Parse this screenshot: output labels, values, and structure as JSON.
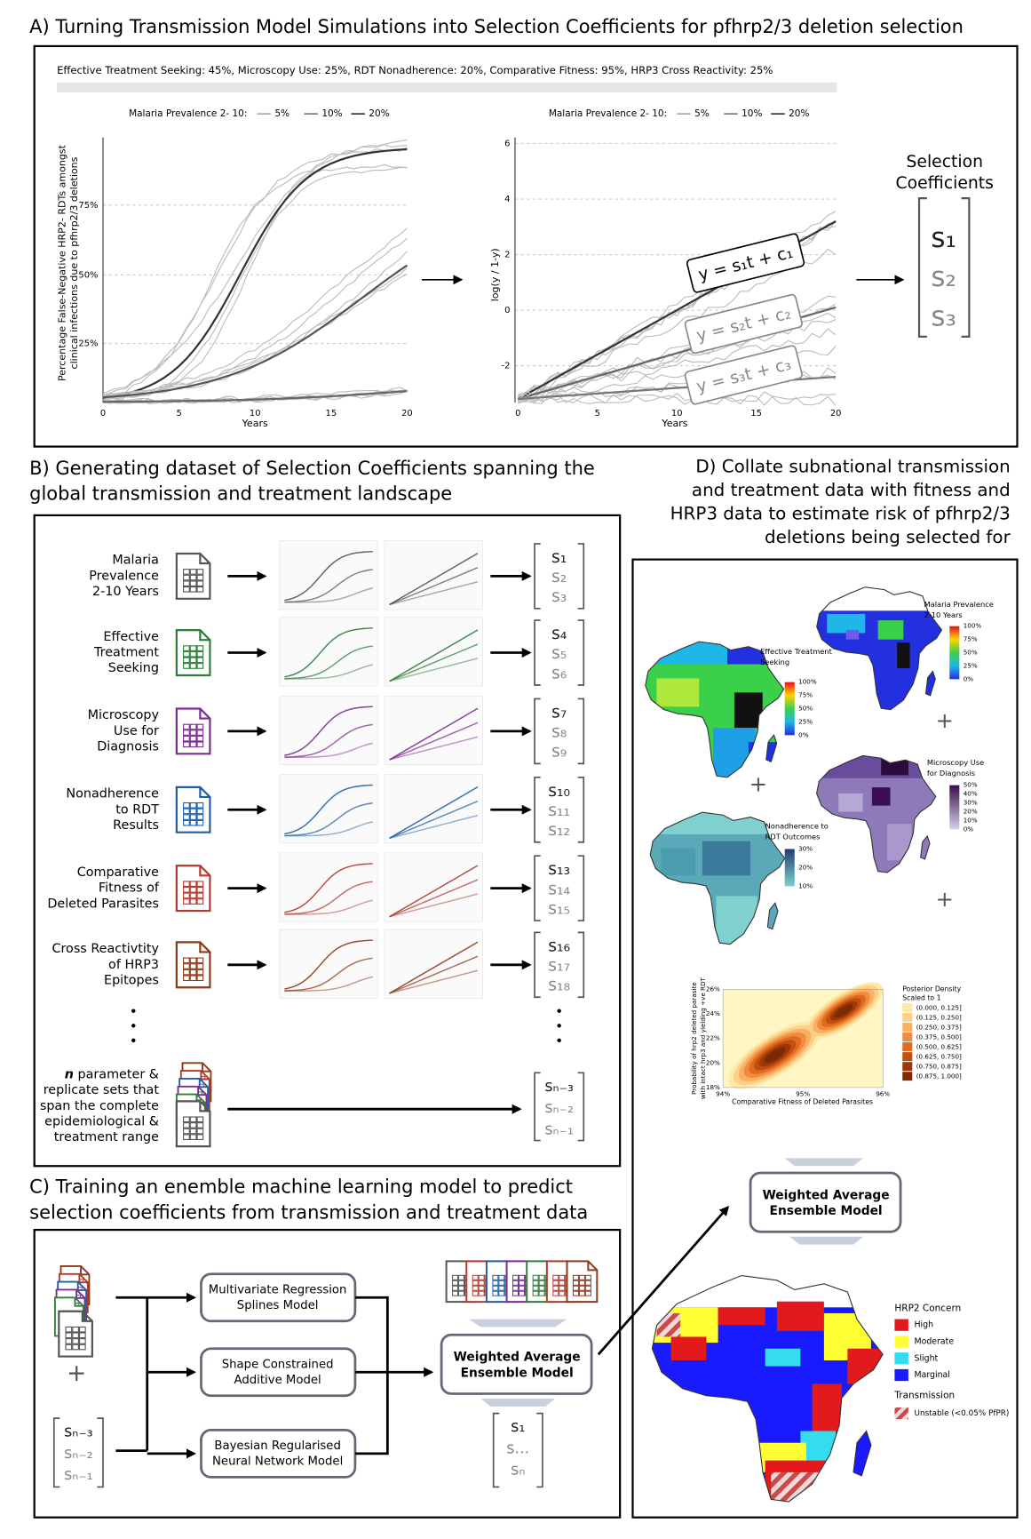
{
  "panel_a": {
    "title": "A) Turning Transmission Model Simulations into Selection Coefficients for pfhrp2/3 deletion selection",
    "parameters": "Effective Treatment Seeking: 45%, Microscopy Use: 25%, RDT Nonadherence: 20%, Comparative Fitness: 95%, HRP3 Cross Reactivity: 25%",
    "left_chart": {
      "legend_title": "Malaria Prevalence 2- 10:",
      "legend": [
        "5%",
        "10%",
        "20%"
      ],
      "y_label": [
        "Percentage False-Negative HRP2- RDTs amongst",
        "clinical infections due to pfhrp2/3 deletions"
      ],
      "y_ticks": [
        "25%",
        "50%",
        "75%"
      ],
      "x_ticks": [
        "0",
        "5",
        "10",
        "15",
        "20"
      ],
      "x_label": "Years"
    },
    "right_chart": {
      "legend_title": "Malaria Prevalence 2- 10:",
      "legend": [
        "5%",
        "10%",
        "20%"
      ],
      "y_label": "log(y / 1-y)",
      "y_ticks": [
        "-2",
        "0",
        "2",
        "4",
        "6"
      ],
      "x_ticks": [
        "0",
        "5",
        "10",
        "15",
        "20"
      ],
      "x_label": "Years"
    },
    "equations": [
      "y = s₁t + c₁",
      "y = s₂t + c₂",
      "y = s₃t + c₃"
    ],
    "selection_title": [
      "Selection",
      "Coefficients"
    ],
    "coefficients": [
      "s₁",
      "s₂",
      "s₃"
    ]
  },
  "panel_b": {
    "title": [
      "B) Generating dataset of Selection Coefficients spanning the",
      "global transmission and treatment landscape"
    ],
    "rows": [
      {
        "label": [
          "Malaria",
          "Prevalence",
          "2-10 Years"
        ],
        "color": "#555555",
        "coefficients": [
          "s₁",
          "s₂",
          "s₃"
        ]
      },
      {
        "label": [
          "Effective",
          "Treatment",
          "Seeking"
        ],
        "color": "#2e7d3a",
        "coefficients": [
          "s₄",
          "s₅",
          "s₆"
        ]
      },
      {
        "label": [
          "Microscopy",
          "Use for",
          "Diagnosis"
        ],
        "color": "#7b2d8e",
        "coefficients": [
          "s₇",
          "s₈",
          "s₉"
        ]
      },
      {
        "label": [
          "Nonadherence",
          "to RDT",
          "Results"
        ],
        "color": "#1f5fa8",
        "coefficients": [
          "s₁₀",
          "s₁₁",
          "s₁₂"
        ]
      },
      {
        "label": [
          "Comparative",
          "Fitness of",
          "Deleted Parasites"
        ],
        "color": "#b03a2e",
        "coefficients": [
          "s₁₃",
          "s₁₄",
          "s₁₅"
        ]
      },
      {
        "label": [
          "Cross Reactivtity",
          "of HRP3",
          "Epitopes"
        ],
        "color": "#8b3a1a",
        "coefficients": [
          "s₁₆",
          "s₁₇",
          "s₁₈"
        ]
      }
    ],
    "last": {
      "n_symbol": "n",
      "label": [
        " parameter &",
        "replicate sets that",
        "span the complete",
        "epidemiological &",
        "treatment range"
      ],
      "coefficients": [
        "sₙ₋₃",
        "sₙ₋₂",
        "sₙ₋₁"
      ]
    }
  },
  "panel_c": {
    "title": [
      "C) Training an enemble machine learning model to predict",
      "selection coefficients from transmission and treatment data"
    ],
    "plus": "+",
    "inputs": [
      "sₙ₋₃",
      "sₙ₋₂",
      "sₙ₋₁"
    ],
    "models": [
      [
        "Multivariate Regression",
        "Splines Model"
      ],
      [
        "Shape Constrained",
        "Additive Model"
      ],
      [
        "Bayesian Regularised",
        "Neural Network Model"
      ]
    ],
    "ensemble": [
      "Weighted Average",
      "Ensemble Model"
    ],
    "outputs": [
      "s₁",
      "s...",
      "sₙ"
    ]
  },
  "panel_d": {
    "title": [
      "D) Collate subnational transmission",
      "and treatment data with fitness and",
      "HRP3 data to estimate risk of pfhrp2/3",
      "deletions being selected for"
    ],
    "plus": "+",
    "maps": [
      {
        "title": [
          "Malaria Prevalence",
          "2-10 Years"
        ],
        "ticks": [
          "100%",
          "75%",
          "50%",
          "25%",
          "0%"
        ]
      },
      {
        "title": [
          "Effective Treatment",
          "Seeking"
        ],
        "ticks": [
          "100%",
          "75%",
          "50%",
          "25%",
          "0%"
        ]
      },
      {
        "title": [
          "Microscopy Use",
          "for Diagnosis"
        ],
        "ticks": [
          "50%",
          "40%",
          "30%",
          "20%",
          "10%",
          "0%"
        ]
      },
      {
        "title": [
          "Nonadherence to",
          "RDT Outcomes"
        ],
        "ticks": [
          "30%",
          "20%",
          "10%"
        ]
      }
    ],
    "density": {
      "y_label": [
        "Probability of hrp2 deleted parasite",
        "with intact hrp3 and yielding +ve RDT"
      ],
      "y_ticks": [
        "18%",
        "20%",
        "22%",
        "24%",
        "26%"
      ],
      "x_ticks": [
        "94%",
        "95%",
        "96%"
      ],
      "x_label": "Comparative Fitness of Deleted Parasites",
      "legend_title": [
        "Posterior Density",
        "Scaled to 1"
      ],
      "legend": [
        "(0.000, 0.125]",
        "(0.125, 0.250]",
        "(0.250, 0.375]",
        "(0.375, 0.500]",
        "(0.500, 0.625]",
        "(0.625, 0.750]",
        "(0.750, 0.875]",
        "(0.875, 1.000]"
      ]
    },
    "ensemble": [
      "Weighted Average",
      "Ensemble Model"
    ],
    "concern": {
      "title": "HRP2 Concern",
      "items": [
        {
          "label": "High",
          "color": "#e31a1c"
        },
        {
          "label": "Moderate",
          "color": "#ffff33"
        },
        {
          "label": "Slight",
          "color": "#33ddee"
        },
        {
          "label": "Marginal",
          "color": "#1a1aff"
        }
      ],
      "transmission_title": "Transmission",
      "transmission_item": "Unstable (<0.05% PfPR)"
    }
  }
}
